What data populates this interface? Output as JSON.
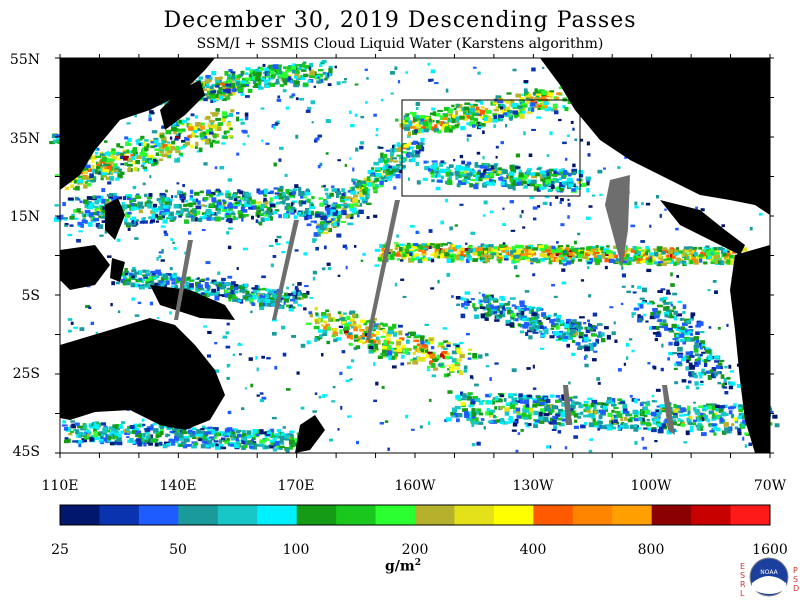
{
  "title": "December 30, 2019  Descending Passes",
  "subtitle": "SSM/I + SSMIS Cloud Liquid Water (Karstens algorithm)",
  "lat_labels": [
    "55N",
    "35N",
    "15N",
    "5S",
    "25S",
    "45S"
  ],
  "lon_labels": [
    "110E",
    "140E",
    "170E",
    "160W",
    "130W",
    "100W",
    "70W"
  ],
  "colorbar": {
    "unit_main": "g/m",
    "unit_sup": "2",
    "tick_labels": [
      "25",
      "50",
      "100",
      "200",
      "400",
      "800",
      "1600"
    ],
    "colors": [
      "#00176d",
      "#0a33b0",
      "#1f5cff",
      "#1a9a9a",
      "#17c6c6",
      "#00f0ff",
      "#159b16",
      "#19c71d",
      "#2bff30",
      "#b5b12d",
      "#e3e11a",
      "#ffff00",
      "#ff5a00",
      "#ff8400",
      "#ffa000",
      "#8b0000",
      "#c80000",
      "#ff1a1a"
    ]
  },
  "logo": {
    "left_letters": [
      "E",
      "S",
      "R",
      "L"
    ],
    "right_letters": [
      "P",
      "S",
      "D"
    ],
    "label": "NOAA"
  },
  "legend_colors": {
    "land": "#000000",
    "no_data": "#ffffff",
    "gap": "#6e6e6e",
    "box": "#000000"
  }
}
